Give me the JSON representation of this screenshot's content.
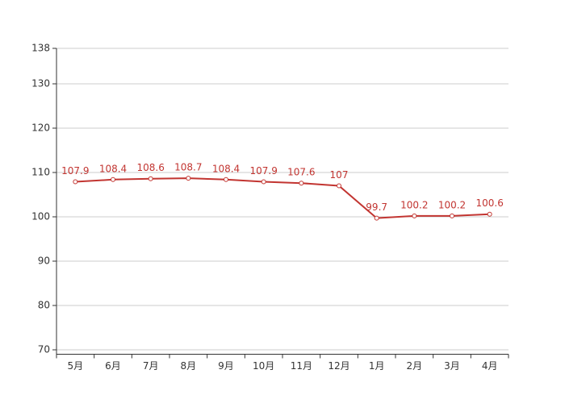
{
  "chart_data": {
    "type": "line",
    "categories": [
      "5月",
      "6月",
      "7月",
      "8月",
      "9月",
      "10月",
      "11月",
      "12月",
      "1月",
      "2月",
      "3月",
      "4月"
    ],
    "values": [
      107.9,
      108.4,
      108.6,
      108.7,
      108.4,
      107.9,
      107.6,
      107,
      99.7,
      100.2,
      100.2,
      100.6
    ],
    "color": "#c23531",
    "ylim": [
      69,
      138
    ],
    "yticks": [
      70,
      80,
      90,
      100,
      110,
      120,
      130,
      138
    ],
    "grid": true
  }
}
